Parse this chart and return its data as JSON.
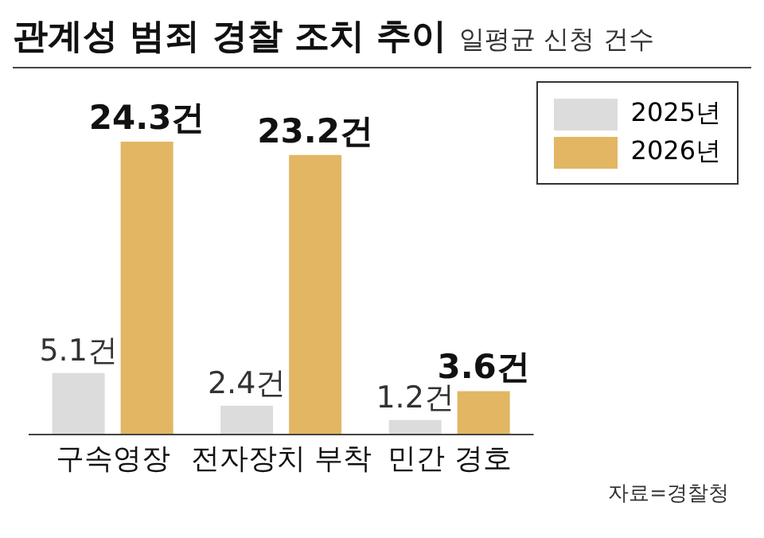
{
  "chart_data": {
    "type": "bar",
    "title": "관계성 범죄 경찰 조치 추이",
    "subtitle": "일평균 신청 건수",
    "annotations": [
      "자료=경찰청"
    ],
    "categories": [
      "구속영장",
      "전자장치 부착",
      "민간 경호"
    ],
    "series": [
      {
        "name": "2025년",
        "color": "#dcdcdc",
        "values": [
          5.1,
          2.4,
          1.2
        ],
        "value_labels": [
          "5.1건",
          "2.4건",
          "1.2건"
        ]
      },
      {
        "name": "2026년",
        "color": "#e2b662",
        "values": [
          24.3,
          23.2,
          3.6
        ],
        "value_labels": [
          "24.3건",
          "23.2건",
          "3.6건"
        ]
      }
    ],
    "legend": "top right",
    "tick_labels": "x",
    "grid": false
  }
}
